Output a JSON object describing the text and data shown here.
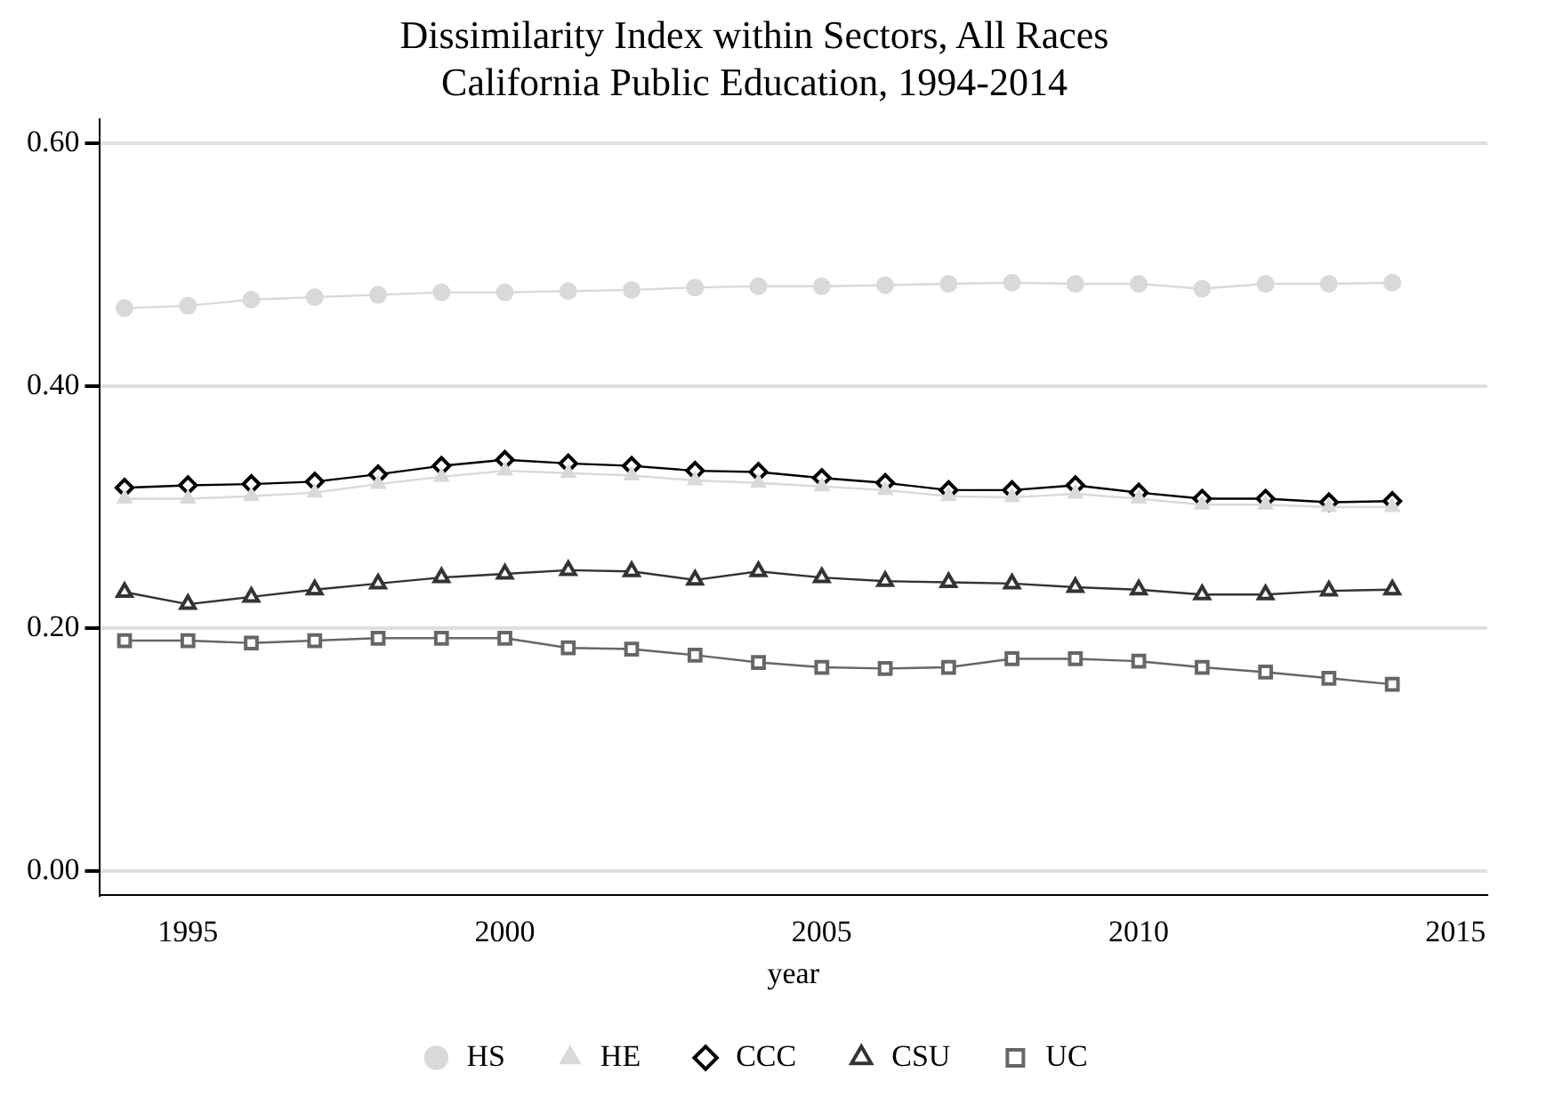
{
  "chart_data": {
    "type": "line",
    "title": "Dissimilarity Index within Sectors, All Races\nCalifornia Public Education, 1994-2014",
    "xlabel": "year",
    "x": [
      1994,
      1995,
      1996,
      1997,
      1998,
      1999,
      2000,
      2001,
      2002,
      2003,
      2004,
      2005,
      2006,
      2007,
      2008,
      2009,
      2010,
      2011,
      2012,
      2013,
      2014
    ],
    "xlim": [
      1993.6,
      2015.5
    ],
    "xticks": [
      1995,
      2000,
      2005,
      2010,
      2015
    ],
    "ylim": [
      -0.02,
      0.62
    ],
    "yticks": [
      {
        "value": 0,
        "label": "0.00"
      },
      {
        "value": 0.2,
        "label": "0.20"
      },
      {
        "value": 0.4,
        "label": "0.40"
      },
      {
        "value": 0.6,
        "label": "0.60"
      }
    ],
    "grid": "y",
    "legend": "bottom",
    "series": [
      {
        "name": "HS",
        "color": "#d9d9d9",
        "marker": "circle",
        "values": [
          0.464,
          0.466,
          0.471,
          0.473,
          0.475,
          0.477,
          0.477,
          0.478,
          0.479,
          0.481,
          0.482,
          0.482,
          0.483,
          0.484,
          0.485,
          0.484,
          0.484,
          0.48,
          0.484,
          0.484,
          0.485
        ]
      },
      {
        "name": "HE",
        "color": "#d9d9d9",
        "marker": "triangle",
        "values": [
          0.307,
          0.307,
          0.309,
          0.312,
          0.319,
          0.325,
          0.33,
          0.328,
          0.326,
          0.322,
          0.32,
          0.317,
          0.314,
          0.309,
          0.308,
          0.311,
          0.307,
          0.302,
          0.302,
          0.3,
          0.3
        ]
      },
      {
        "name": "CCC",
        "color": "#000000",
        "marker": "diamond",
        "values": [
          0.316,
          0.318,
          0.319,
          0.321,
          0.327,
          0.334,
          0.339,
          0.336,
          0.334,
          0.33,
          0.329,
          0.324,
          0.32,
          0.314,
          0.314,
          0.318,
          0.312,
          0.307,
          0.307,
          0.304,
          0.305
        ]
      },
      {
        "name": "CSU",
        "color": "#333333",
        "marker": "triangle",
        "values": [
          0.23,
          0.22,
          0.226,
          0.232,
          0.237,
          0.242,
          0.245,
          0.248,
          0.247,
          0.24,
          0.247,
          0.242,
          0.239,
          0.238,
          0.237,
          0.234,
          0.232,
          0.228,
          0.228,
          0.231,
          0.232
        ]
      },
      {
        "name": "UC",
        "color": "#666666",
        "marker": "square",
        "values": [
          0.19,
          0.19,
          0.188,
          0.19,
          0.192,
          0.192,
          0.192,
          0.184,
          0.183,
          0.178,
          0.172,
          0.168,
          0.167,
          0.168,
          0.175,
          0.175,
          0.173,
          0.168,
          0.164,
          0.159,
          0.154
        ]
      }
    ]
  }
}
